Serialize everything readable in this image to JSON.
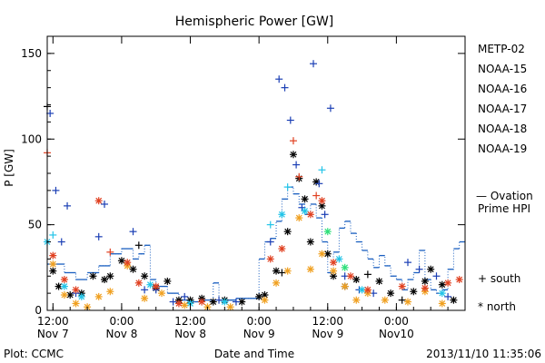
{
  "chart_data": {
    "type": "scatter",
    "title": "Hemispheric Power [GW]",
    "ylabel": "P [GW]",
    "xlabel": "Date and Time",
    "ylim": [
      0,
      160
    ],
    "xlim": [
      "2013-11-07T11:00",
      "2013-11-10T12:00"
    ],
    "y_ticks": [
      0,
      50,
      100,
      150
    ],
    "x_ticks": [
      {
        "time": "2013-11-07T12:00",
        "label1": "12:00",
        "label2": "Nov 7"
      },
      {
        "time": "2013-11-08T00:00",
        "label1": "0:00",
        "label2": "Nov 8"
      },
      {
        "time": "2013-11-08T12:00",
        "label1": "12:00",
        "label2": "Nov 8"
      },
      {
        "time": "2013-11-09T00:00",
        "label1": "0:00",
        "label2": "Nov 9"
      },
      {
        "time": "2013-11-09T12:00",
        "label1": "12:00",
        "label2": "Nov 9"
      },
      {
        "time": "2013-11-10T00:00",
        "label1": "0:00",
        "label2": "Nov10"
      }
    ],
    "grid": false,
    "legend_position": "right",
    "legend_items": [
      {
        "name": "METP-02",
        "color": "#000000"
      },
      {
        "name": "NOAA-15",
        "color": "#1b3fb5"
      },
      {
        "name": "NOAA-16",
        "color": "#22c4e8"
      },
      {
        "name": "NOAA-17",
        "color": "#2ee07a"
      },
      {
        "name": "NOAA-18",
        "color": "#f0a020"
      },
      {
        "name": "NOAA-19",
        "color": "#e04020"
      }
    ],
    "ovation_label_line1": "— Ovation",
    "ovation_label_line2": "Prime HPI",
    "ovation_color": "#1a5fc0",
    "marker_south_label": "+ south",
    "marker_north_label": "* north",
    "ovation_series": [
      [
        "2013-11-07T11:00",
        27
      ],
      [
        "2013-11-07T12:00",
        27
      ],
      [
        "2013-11-07T14:00",
        22
      ],
      [
        "2013-11-07T16:00",
        18
      ],
      [
        "2013-11-07T18:00",
        22
      ],
      [
        "2013-11-07T20:00",
        26
      ],
      [
        "2013-11-07T22:00",
        33
      ],
      [
        "2013-11-08T00:00",
        36
      ],
      [
        "2013-11-08T02:00",
        30
      ],
      [
        "2013-11-08T03:00",
        33
      ],
      [
        "2013-11-08T04:00",
        38
      ],
      [
        "2013-11-08T05:00",
        18
      ],
      [
        "2013-11-08T06:00",
        14
      ],
      [
        "2013-11-08T08:00",
        10
      ],
      [
        "2013-11-08T10:00",
        6
      ],
      [
        "2013-11-08T12:00",
        5
      ],
      [
        "2013-11-08T14:00",
        6
      ],
      [
        "2013-11-08T16:00",
        16
      ],
      [
        "2013-11-08T17:00",
        6
      ],
      [
        "2013-11-08T20:00",
        7
      ],
      [
        "2013-11-08T22:00",
        7
      ],
      [
        "2013-11-09T00:00",
        30
      ],
      [
        "2013-11-09T01:00",
        40
      ],
      [
        "2013-11-09T02:00",
        42
      ],
      [
        "2013-11-09T03:00",
        52
      ],
      [
        "2013-11-09T04:00",
        65
      ],
      [
        "2013-11-09T05:00",
        72
      ],
      [
        "2013-11-09T06:00",
        68
      ],
      [
        "2013-11-09T07:00",
        62
      ],
      [
        "2013-11-09T08:00",
        56
      ],
      [
        "2013-11-09T09:00",
        62
      ],
      [
        "2013-11-09T10:00",
        54
      ],
      [
        "2013-11-09T11:00",
        40
      ],
      [
        "2013-11-09T12:00",
        22
      ],
      [
        "2013-11-09T13:00",
        34
      ],
      [
        "2013-11-09T14:00",
        48
      ],
      [
        "2013-11-09T15:00",
        52
      ],
      [
        "2013-11-09T16:00",
        45
      ],
      [
        "2013-11-09T17:00",
        40
      ],
      [
        "2013-11-09T18:00",
        35
      ],
      [
        "2013-11-09T19:00",
        30
      ],
      [
        "2013-11-09T20:00",
        25
      ],
      [
        "2013-11-09T21:00",
        32
      ],
      [
        "2013-11-09T22:00",
        26
      ],
      [
        "2013-11-09T23:00",
        20
      ],
      [
        "2013-11-10T00:00",
        18
      ],
      [
        "2013-11-10T01:00",
        12
      ],
      [
        "2013-11-10T02:00",
        18
      ],
      [
        "2013-11-10T03:00",
        22
      ],
      [
        "2013-11-10T04:00",
        35
      ],
      [
        "2013-11-10T05:00",
        18
      ],
      [
        "2013-11-10T06:00",
        12
      ],
      [
        "2013-11-10T07:00",
        10
      ],
      [
        "2013-11-10T08:00",
        12
      ],
      [
        "2013-11-10T09:00",
        24
      ],
      [
        "2013-11-10T10:00",
        36
      ],
      [
        "2013-11-10T11:00",
        40
      ],
      [
        "2013-11-10T12:00",
        44
      ]
    ],
    "series": [
      {
        "name": "METP-02",
        "color": "#000000",
        "points": [
          [
            "2013-11-07T11:00",
            119,
            "s"
          ],
          [
            "2013-11-07T12:00",
            23,
            "n"
          ],
          [
            "2013-11-07T13:00",
            14,
            "n"
          ],
          [
            "2013-11-07T15:00",
            9,
            "n"
          ],
          [
            "2013-11-07T17:00",
            10,
            "n"
          ],
          [
            "2013-11-07T19:00",
            20,
            "n"
          ],
          [
            "2013-11-07T21:00",
            18,
            "n"
          ],
          [
            "2013-11-07T22:00",
            20,
            "n"
          ],
          [
            "2013-11-08T00:00",
            29,
            "n"
          ],
          [
            "2013-11-08T02:00",
            24,
            "n"
          ],
          [
            "2013-11-08T03:00",
            38,
            "s"
          ],
          [
            "2013-11-08T04:00",
            20,
            "n"
          ],
          [
            "2013-11-08T06:00",
            13,
            "n"
          ],
          [
            "2013-11-08T08:00",
            17,
            "n"
          ],
          [
            "2013-11-08T10:00",
            6,
            "n"
          ],
          [
            "2013-11-08T12:00",
            6,
            "n"
          ],
          [
            "2013-11-08T14:00",
            7,
            "n"
          ],
          [
            "2013-11-08T16:00",
            5,
            "n"
          ],
          [
            "2013-11-08T18:00",
            6,
            "n"
          ],
          [
            "2013-11-08T21:00",
            5,
            "n"
          ],
          [
            "2013-11-09T00:00",
            8,
            "n"
          ],
          [
            "2013-11-09T01:00",
            9,
            "n"
          ],
          [
            "2013-11-09T03:00",
            23,
            "n"
          ],
          [
            "2013-11-09T04:00",
            22,
            "s"
          ],
          [
            "2013-11-09T05:00",
            46,
            "n"
          ],
          [
            "2013-11-09T06:00",
            91,
            "n"
          ],
          [
            "2013-11-09T07:00",
            77,
            "n"
          ],
          [
            "2013-11-09T08:00",
            65,
            "n"
          ],
          [
            "2013-11-09T09:00",
            40,
            "n"
          ],
          [
            "2013-11-09T10:00",
            75,
            "n"
          ],
          [
            "2013-11-09T11:00",
            61,
            "n"
          ],
          [
            "2013-11-09T12:00",
            33,
            "n"
          ],
          [
            "2013-11-09T13:00",
            20,
            "n"
          ],
          [
            "2013-11-09T15:00",
            14,
            "n"
          ],
          [
            "2013-11-09T17:00",
            18,
            "n"
          ],
          [
            "2013-11-09T19:00",
            21,
            "s"
          ],
          [
            "2013-11-09T21:00",
            17,
            "n"
          ],
          [
            "2013-11-09T23:00",
            10,
            "n"
          ],
          [
            "2013-11-10T01:00",
            6,
            "s"
          ],
          [
            "2013-11-10T03:00",
            11,
            "n"
          ],
          [
            "2013-11-10T05:00",
            17,
            "n"
          ],
          [
            "2013-11-10T06:00",
            24,
            "n"
          ],
          [
            "2013-11-10T08:00",
            15,
            "n"
          ],
          [
            "2013-11-10T10:00",
            6,
            "n"
          ]
        ]
      },
      {
        "name": "NOAA-15",
        "color": "#1b3fb5",
        "points": [
          [
            "2013-11-07T11:30",
            115,
            "s"
          ],
          [
            "2013-11-07T12:30",
            70,
            "s"
          ],
          [
            "2013-11-07T13:30",
            40,
            "s"
          ],
          [
            "2013-11-07T14:30",
            61,
            "s"
          ],
          [
            "2013-11-07T16:00",
            10,
            "s"
          ],
          [
            "2013-11-07T20:00",
            43,
            "s"
          ],
          [
            "2013-11-07T21:00",
            62,
            "s"
          ],
          [
            "2013-11-08T02:00",
            46,
            "s"
          ],
          [
            "2013-11-08T04:00",
            12,
            "s"
          ],
          [
            "2013-11-08T06:00",
            12,
            "s"
          ],
          [
            "2013-11-08T09:00",
            5,
            "s"
          ],
          [
            "2013-11-08T11:00",
            8,
            "s"
          ],
          [
            "2013-11-08T17:00",
            6,
            "s"
          ],
          [
            "2013-11-08T20:00",
            5,
            "s"
          ],
          [
            "2013-11-09T02:00",
            40,
            "s"
          ],
          [
            "2013-11-09T03:30",
            135,
            "s"
          ],
          [
            "2013-11-09T04:30",
            130,
            "s"
          ],
          [
            "2013-11-09T05:30",
            111,
            "s"
          ],
          [
            "2013-11-09T06:30",
            85,
            "s"
          ],
          [
            "2013-11-09T07:30",
            60,
            "s"
          ],
          [
            "2013-11-09T09:30",
            144,
            "s"
          ],
          [
            "2013-11-09T10:30",
            74,
            "s"
          ],
          [
            "2013-11-09T11:30",
            56,
            "s"
          ],
          [
            "2013-11-09T12:30",
            118,
            "s"
          ],
          [
            "2013-11-09T15:00",
            20,
            "s"
          ],
          [
            "2013-11-09T17:30",
            12,
            "s"
          ],
          [
            "2013-11-09T20:00",
            10,
            "s"
          ],
          [
            "2013-11-10T02:00",
            28,
            "s"
          ],
          [
            "2013-11-10T04:00",
            24,
            "s"
          ],
          [
            "2013-11-10T07:00",
            20,
            "s"
          ],
          [
            "2013-11-10T09:00",
            8,
            "s"
          ]
        ]
      },
      {
        "name": "NOAA-16",
        "color": "#22c4e8",
        "points": [
          [
            "2013-11-07T11:00",
            40,
            "n"
          ],
          [
            "2013-11-07T12:00",
            44,
            "s"
          ],
          [
            "2013-11-07T14:00",
            14,
            "n"
          ],
          [
            "2013-11-07T17:00",
            8,
            "n"
          ],
          [
            "2013-11-08T05:00",
            15,
            "n"
          ],
          [
            "2013-11-08T12:00",
            4,
            "n"
          ],
          [
            "2013-11-08T18:00",
            5,
            "n"
          ],
          [
            "2013-11-09T02:00",
            50,
            "s"
          ],
          [
            "2013-11-09T04:00",
            56,
            "n"
          ],
          [
            "2013-11-09T05:00",
            72,
            "s"
          ],
          [
            "2013-11-09T08:00",
            58,
            "n"
          ],
          [
            "2013-11-09T11:00",
            82,
            "s"
          ],
          [
            "2013-11-09T14:00",
            30,
            "n"
          ],
          [
            "2013-11-09T18:00",
            12,
            "n"
          ],
          [
            "2013-11-10T08:00",
            10,
            "n"
          ]
        ]
      },
      {
        "name": "NOAA-17",
        "color": "#2ee07a",
        "points": [
          [
            "2013-11-09T12:00",
            46,
            "n"
          ],
          [
            "2013-11-09T15:00",
            25,
            "n"
          ]
        ]
      },
      {
        "name": "NOAA-18",
        "color": "#f0a020",
        "points": [
          [
            "2013-11-07T12:00",
            27,
            "n"
          ],
          [
            "2013-11-07T14:00",
            9,
            "n"
          ],
          [
            "2013-11-07T16:00",
            4,
            "n"
          ],
          [
            "2013-11-07T18:00",
            2,
            "n"
          ],
          [
            "2013-11-07T20:00",
            8,
            "n"
          ],
          [
            "2013-11-07T22:00",
            11,
            "n"
          ],
          [
            "2013-11-08T01:00",
            26,
            "n"
          ],
          [
            "2013-11-08T04:00",
            7,
            "n"
          ],
          [
            "2013-11-08T07:00",
            10,
            "n"
          ],
          [
            "2013-11-08T11:00",
            3,
            "n"
          ],
          [
            "2013-11-08T15:00",
            2,
            "n"
          ],
          [
            "2013-11-08T19:00",
            2,
            "n"
          ],
          [
            "2013-11-09T01:00",
            6,
            "n"
          ],
          [
            "2013-11-09T03:00",
            16,
            "n"
          ],
          [
            "2013-11-09T05:00",
            23,
            "n"
          ],
          [
            "2013-11-09T07:00",
            54,
            "n"
          ],
          [
            "2013-11-09T09:00",
            24,
            "n"
          ],
          [
            "2013-11-09T11:00",
            33,
            "n"
          ],
          [
            "2013-11-09T13:00",
            23,
            "n"
          ],
          [
            "2013-11-09T15:00",
            14,
            "n"
          ],
          [
            "2013-11-09T17:00",
            6,
            "n"
          ],
          [
            "2013-11-09T19:00",
            10,
            "n"
          ],
          [
            "2013-11-09T22:00",
            6,
            "n"
          ],
          [
            "2013-11-10T02:00",
            5,
            "n"
          ],
          [
            "2013-11-10T05:00",
            11,
            "n"
          ],
          [
            "2013-11-10T08:00",
            4,
            "n"
          ]
        ]
      },
      {
        "name": "NOAA-19",
        "color": "#e04020",
        "points": [
          [
            "2013-11-07T11:00",
            92,
            "s"
          ],
          [
            "2013-11-07T12:00",
            32,
            "n"
          ],
          [
            "2013-11-07T14:00",
            18,
            "n"
          ],
          [
            "2013-11-07T16:00",
            12,
            "n"
          ],
          [
            "2013-11-07T20:00",
            64,
            "n"
          ],
          [
            "2013-11-07T22:00",
            34,
            "s"
          ],
          [
            "2013-11-08T01:00",
            28,
            "n"
          ],
          [
            "2013-11-08T03:00",
            16,
            "n"
          ],
          [
            "2013-11-08T06:00",
            14,
            "n"
          ],
          [
            "2013-11-08T10:00",
            4,
            "n"
          ],
          [
            "2013-11-08T14:00",
            5,
            "n"
          ],
          [
            "2013-11-09T02:00",
            30,
            "n"
          ],
          [
            "2013-11-09T04:00",
            36,
            "n"
          ],
          [
            "2013-11-09T06:00",
            99,
            "s"
          ],
          [
            "2013-11-09T07:00",
            78,
            "s"
          ],
          [
            "2013-11-09T09:00",
            56,
            "n"
          ],
          [
            "2013-11-09T10:00",
            67,
            "s"
          ],
          [
            "2013-11-09T11:00",
            64,
            "n"
          ],
          [
            "2013-11-09T13:00",
            28,
            "n"
          ],
          [
            "2013-11-09T16:00",
            20,
            "n"
          ],
          [
            "2013-11-09T19:00",
            12,
            "n"
          ],
          [
            "2013-11-10T01:00",
            14,
            "n"
          ],
          [
            "2013-11-10T05:00",
            13,
            "n"
          ],
          [
            "2013-11-10T09:00",
            16,
            "n"
          ],
          [
            "2013-11-10T11:00",
            18,
            "n"
          ]
        ]
      }
    ]
  },
  "footer": {
    "left": "Plot: CCMC",
    "right": "2013/11/10 11:35:06"
  }
}
